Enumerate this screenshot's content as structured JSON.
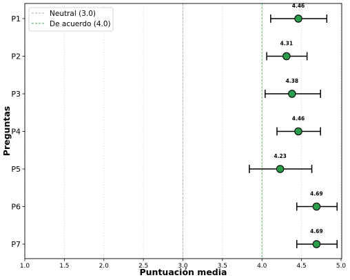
{
  "chart_data": {
    "type": "scatter",
    "orientation": "horizontal",
    "title": "",
    "xlabel": "Puntuación media",
    "ylabel": "Preguntas",
    "xlim": [
      1.0,
      5.0
    ],
    "xticks": [
      "1.0",
      "1.5",
      "2.0",
      "2.5",
      "3.0",
      "3.5",
      "4.0",
      "4.5",
      "5.0"
    ],
    "grid": "x-dotted",
    "legend_position": "top-left",
    "categories": [
      "P1",
      "P2",
      "P3",
      "P4",
      "P5",
      "P6",
      "P7"
    ],
    "values": [
      4.46,
      4.31,
      4.38,
      4.46,
      4.23,
      4.69,
      4.69
    ],
    "value_labels": [
      "4.46",
      "4.31",
      "4.38",
      "4.46",
      "4.23",
      "4.69",
      "4.69"
    ],
    "error_low": [
      4.11,
      4.06,
      4.04,
      4.19,
      3.84,
      4.44,
      4.44
    ],
    "error_high": [
      4.82,
      4.57,
      4.74,
      4.74,
      4.63,
      4.95,
      4.95
    ],
    "reference_lines": [
      {
        "label": "Neutral (3.0)",
        "value": 3.0,
        "color": "#aaaaaa"
      },
      {
        "label": "De acuerdo (4.0)",
        "value": 4.0,
        "color": "#4caf50"
      }
    ],
    "marker_color": "#2a9d4a",
    "marker_edge": "#000000"
  }
}
